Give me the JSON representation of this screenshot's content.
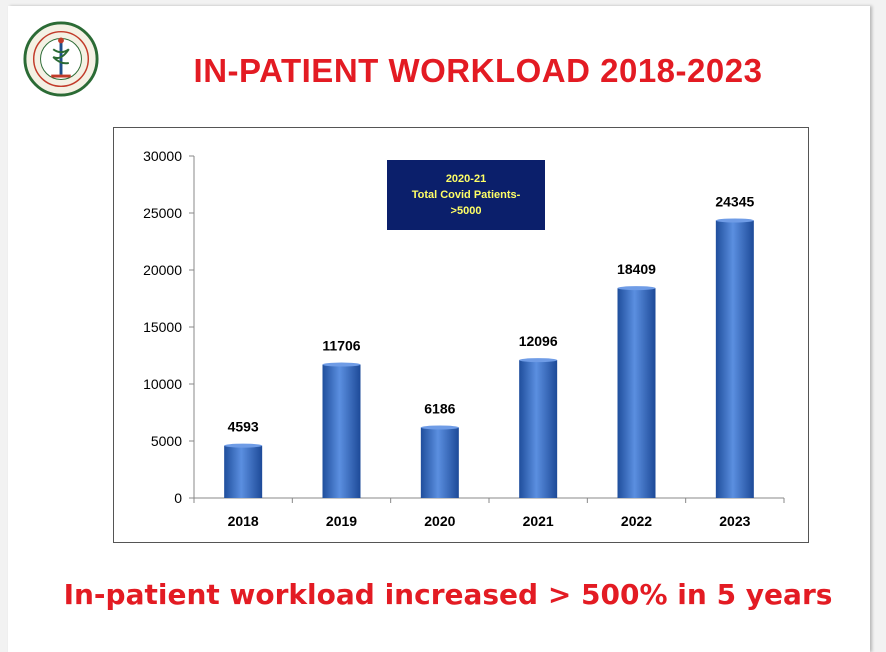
{
  "slide": {
    "title": "IN-PATIENT  WORKLOAD 2018-2023",
    "footer": "In-patient workload  increased > 500% in 5 years",
    "callout": {
      "line1": "2020-21",
      "line2": "Total Covid Patients-",
      "line3": ">5000"
    },
    "colors": {
      "title": "#e31b23",
      "bar": "#3a6fc8",
      "callout_bg": "#0b1f6b",
      "callout_text": "#ffff66"
    }
  },
  "chart_data": {
    "type": "bar",
    "categories": [
      "2018",
      "2019",
      "2020",
      "2021",
      "2022",
      "2023"
    ],
    "values": [
      4593,
      11706,
      6186,
      12096,
      18409,
      24345
    ],
    "ylim": [
      0,
      30000
    ],
    "yticks": [
      0,
      5000,
      10000,
      15000,
      20000,
      25000,
      30000
    ],
    "title": "",
    "xlabel": "",
    "ylabel": "",
    "grid": false,
    "legend": "none"
  }
}
